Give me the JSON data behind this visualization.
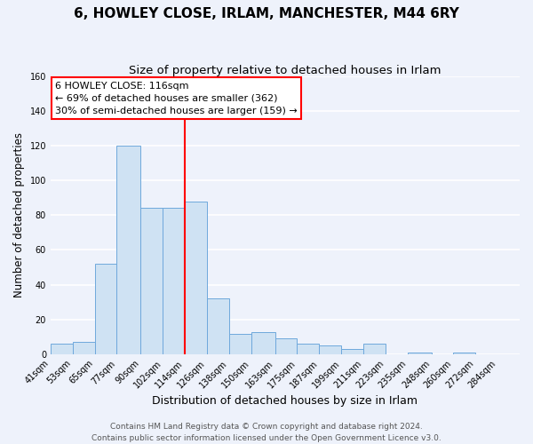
{
  "title": "6, HOWLEY CLOSE, IRLAM, MANCHESTER, M44 6RY",
  "subtitle": "Size of property relative to detached houses in Irlam",
  "xlabel": "Distribution of detached houses by size in Irlam",
  "ylabel": "Number of detached properties",
  "bar_edges": [
    41,
    53,
    65,
    77,
    90,
    102,
    114,
    126,
    138,
    150,
    163,
    175,
    187,
    199,
    211,
    223,
    235,
    248,
    260,
    272,
    284
  ],
  "bar_heights": [
    6,
    7,
    52,
    120,
    84,
    84,
    88,
    32,
    12,
    13,
    9,
    6,
    5,
    3,
    6,
    0,
    1,
    0,
    1,
    0,
    1
  ],
  "bar_color": "#cfe2f3",
  "bar_edge_color": "#6fa8dc",
  "vline_x": 114,
  "vline_color": "red",
  "annotation_title": "6 HOWLEY CLOSE: 116sqm",
  "annotation_line1": "← 69% of detached houses are smaller (362)",
  "annotation_line2": "30% of semi-detached houses are larger (159) →",
  "annotation_box_color": "white",
  "annotation_box_edge_color": "red",
  "ylim": [
    0,
    160
  ],
  "yticks": [
    0,
    20,
    40,
    60,
    80,
    100,
    120,
    140,
    160
  ],
  "tick_labels": [
    "41sqm",
    "53sqm",
    "65sqm",
    "77sqm",
    "90sqm",
    "102sqm",
    "114sqm",
    "126sqm",
    "138sqm",
    "150sqm",
    "163sqm",
    "175sqm",
    "187sqm",
    "199sqm",
    "211sqm",
    "223sqm",
    "235sqm",
    "248sqm",
    "260sqm",
    "272sqm",
    "284sqm"
  ],
  "footer1": "Contains HM Land Registry data © Crown copyright and database right 2024.",
  "footer2": "Contains public sector information licensed under the Open Government Licence v3.0.",
  "bg_color": "#eef2fb",
  "grid_color": "#ffffff",
  "title_fontsize": 11,
  "subtitle_fontsize": 9.5,
  "xlabel_fontsize": 9,
  "ylabel_fontsize": 8.5,
  "tick_fontsize": 7,
  "footer_fontsize": 6.5,
  "ann_fontsize": 8
}
